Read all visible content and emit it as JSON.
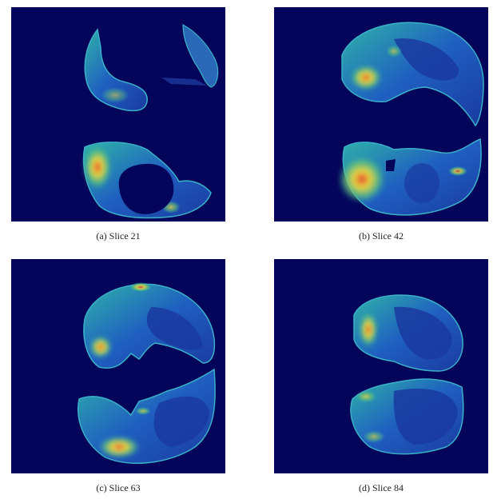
{
  "figure": {
    "panels": [
      {
        "caption": "(a) Slice 21"
      },
      {
        "caption": "(b) Slice 42"
      },
      {
        "caption": "(c) Slice 63"
      },
      {
        "caption": "(d) Slice 84"
      }
    ],
    "colors": {
      "background": "#04045a",
      "low": "#1f4fb8",
      "mid": "#2fb3a8",
      "high": "#e8d640",
      "peak": "#e0402c"
    }
  }
}
